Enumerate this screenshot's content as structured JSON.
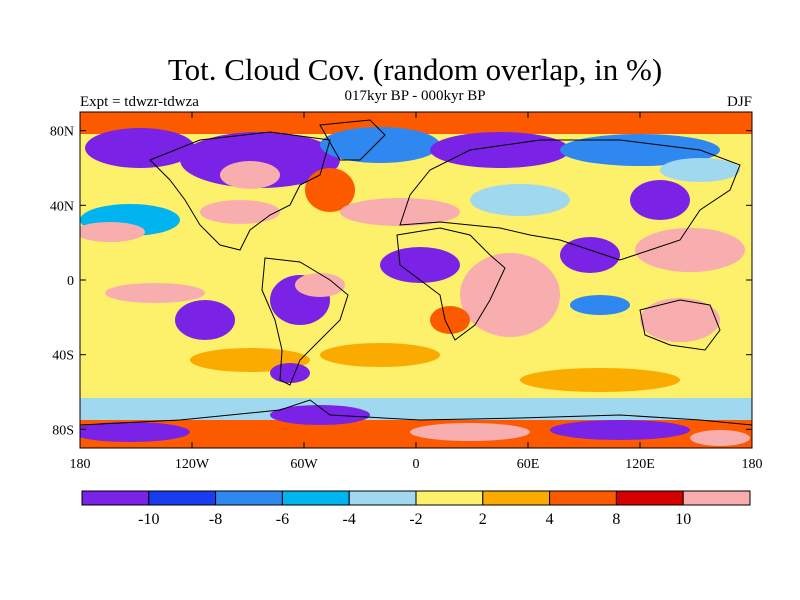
{
  "title": "Tot. Cloud Cov. (random overlap, in %)",
  "subtitle": "017kyr BP - 000kyr BP",
  "left_label": "Expt = tdwzr-tdwza",
  "right_label": "DJF",
  "map": {
    "projection": "cylindrical-equidistant",
    "lon_range": [
      -180,
      180
    ],
    "lat_range": [
      -90,
      90
    ],
    "lat_ticks": [
      {
        "value": 80,
        "label": "80N"
      },
      {
        "value": 40,
        "label": "40N"
      },
      {
        "value": 0,
        "label": "0"
      },
      {
        "value": -40,
        "label": "40S"
      },
      {
        "value": -80,
        "label": "80S"
      }
    ],
    "lon_ticks": [
      {
        "value": -180,
        "label": "180"
      },
      {
        "value": -120,
        "label": "120W"
      },
      {
        "value": -60,
        "label": "60W"
      },
      {
        "value": 0,
        "label": "0"
      },
      {
        "value": 60,
        "label": "60E"
      },
      {
        "value": 120,
        "label": "120E"
      },
      {
        "value": 180,
        "label": "180"
      }
    ]
  },
  "colorbar": {
    "colors": [
      "#7a22e6",
      "#1a3cf0",
      "#2f87f0",
      "#00b4ef",
      "#9fd8ef",
      "#fdf06b",
      "#fbaa00",
      "#fd5a00",
      "#d40000",
      "#f8aeae"
    ],
    "labels": [
      "-10",
      "-8",
      "-6",
      "-4",
      "-2",
      "2",
      "4",
      "8",
      "10"
    ]
  }
}
